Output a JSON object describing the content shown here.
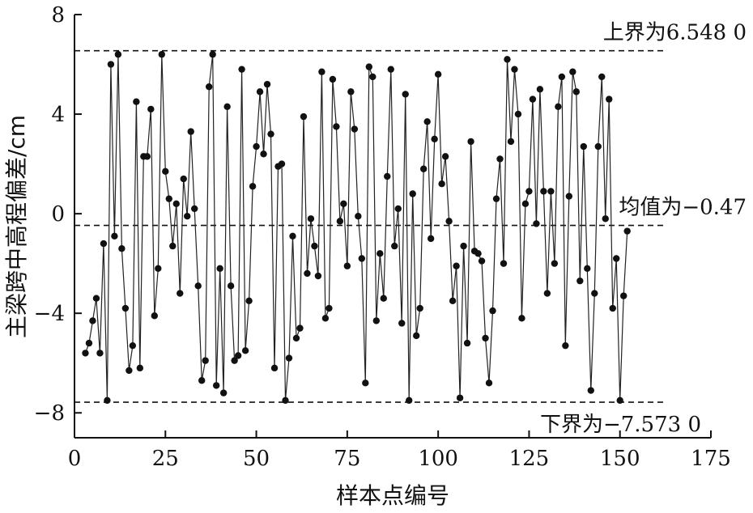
{
  "chart_data": {
    "type": "scatter",
    "xlabel": "样本点编号",
    "ylabel": "主梁跨中高程偏差/cm",
    "xlim": [
      0,
      175
    ],
    "ylim": [
      -9,
      8
    ],
    "xticks": [
      "0",
      "25",
      "50",
      "75",
      "100",
      "125",
      "150",
      "175"
    ],
    "xtick_values": [
      0,
      25,
      50,
      75,
      100,
      125,
      150,
      175
    ],
    "yticks": [
      "−8",
      "−4",
      "0",
      "4",
      "8"
    ],
    "ytick_values": [
      -8,
      -4,
      0,
      4,
      8
    ],
    "grid": false,
    "legend": "none",
    "reference_lines": [
      {
        "label": "上界为6.548 0",
        "value": 6.548
      },
      {
        "label": "均值为−0.47",
        "value": -0.47
      },
      {
        "label": "下界为−7.573 0",
        "value": -7.573
      }
    ],
    "series": [
      {
        "x": [
          3,
          4,
          5,
          6,
          7,
          8,
          9,
          10,
          11,
          12,
          13,
          14,
          15,
          16,
          17,
          18,
          19,
          20,
          21,
          22,
          23,
          24,
          25,
          26,
          27,
          28,
          29,
          30,
          31,
          32,
          33,
          34,
          35,
          36,
          37,
          38,
          39,
          40,
          41,
          42,
          43,
          44,
          45,
          46,
          47,
          48,
          49,
          50,
          51,
          52,
          53,
          54,
          55,
          56,
          57,
          58,
          59,
          60,
          61,
          62,
          63,
          64,
          65,
          66,
          67,
          68,
          69,
          70,
          71,
          72,
          73,
          74,
          75,
          76,
          77,
          78,
          79,
          80,
          81,
          82,
          83,
          84,
          85,
          86,
          87,
          88,
          89,
          90,
          91,
          92,
          93,
          94,
          95,
          96,
          97,
          98,
          99,
          100,
          101,
          102,
          103,
          104,
          105,
          106,
          107,
          108,
          109,
          110,
          111,
          112,
          113,
          114,
          115,
          116,
          117,
          118,
          119,
          120,
          121,
          122,
          123,
          124,
          125,
          126,
          127,
          128,
          129,
          130,
          131,
          132,
          133,
          134,
          135,
          136,
          137,
          138,
          139,
          140,
          141,
          142,
          143,
          144,
          145,
          146,
          147,
          148,
          149,
          150,
          151,
          152
        ],
        "values": [
          -5.6,
          -5.2,
          -4.3,
          -3.4,
          -5.6,
          -1.2,
          -7.5,
          6.0,
          -0.9,
          6.4,
          -1.4,
          -3.8,
          -6.3,
          -5.3,
          4.5,
          -6.2,
          2.3,
          2.3,
          4.2,
          -4.1,
          -2.2,
          6.4,
          1.7,
          0.6,
          -1.3,
          0.4,
          -3.2,
          1.4,
          -0.1,
          3.3,
          0.2,
          -2.9,
          -6.7,
          -5.9,
          5.1,
          6.4,
          -6.9,
          -2.2,
          -7.2,
          4.3,
          -2.9,
          -5.9,
          -5.7,
          5.8,
          -5.5,
          -3.5,
          1.1,
          2.7,
          4.9,
          2.4,
          5.2,
          3.2,
          -6.2,
          1.9,
          2.0,
          -7.5,
          -5.8,
          -0.9,
          -5.0,
          -4.6,
          3.9,
          -2.4,
          -0.2,
          -1.3,
          -2.5,
          5.7,
          -4.2,
          -3.8,
          5.4,
          3.5,
          -0.3,
          0.4,
          -2.1,
          4.9,
          3.4,
          -0.1,
          -1.8,
          -6.8,
          5.9,
          5.5,
          -4.3,
          -1.6,
          -3.4,
          1.5,
          5.8,
          -1.3,
          0.2,
          -4.4,
          4.8,
          -7.5,
          0.8,
          -4.9,
          -3.8,
          1.8,
          3.7,
          -1.0,
          3.0,
          5.6,
          1.2,
          2.3,
          -0.3,
          -3.5,
          -2.1,
          -7.4,
          -1.3,
          -5.2,
          2.9,
          -1.5,
          -1.6,
          -1.9,
          -5.0,
          -6.8,
          -3.9,
          0.6,
          2.2,
          -2.0,
          6.2,
          2.9,
          5.8,
          4.0,
          -4.2,
          0.4,
          0.9,
          4.6,
          -0.4,
          5.0,
          0.9,
          -3.2,
          0.9,
          -2.0,
          4.3,
          5.5,
          -5.3,
          0.7,
          5.7,
          4.9,
          -2.7,
          2.7,
          -2.2,
          -7.1,
          -3.2,
          2.7,
          5.5,
          -0.2,
          4.6,
          -3.8,
          -1.8,
          -7.5,
          -3.3,
          -0.7
        ]
      }
    ]
  }
}
